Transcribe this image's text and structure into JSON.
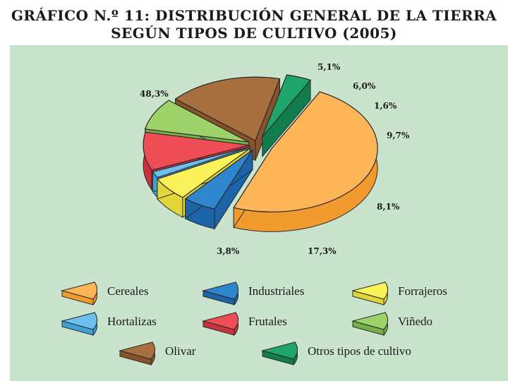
{
  "title_line1": "GRÁFICO N.º 11: DISTRIBUCIÓN GENERAL DE LA TIERRA",
  "title_line2": "SEGÚN TIPOS DE CULTIVO (2005)",
  "chart_data": {
    "type": "pie",
    "title": "GRÁFICO N.º 11: DISTRIBUCIÓN GENERAL DE LA TIERRA SEGÚN TIPOS DE CULTIVO (2005)",
    "slices": [
      {
        "label": "Cereales",
        "value": 48.3,
        "display": "48,3%",
        "color": "#fdb558",
        "dark": "#f19a2e"
      },
      {
        "label": "Industriales",
        "value": 5.1,
        "display": "5,1%",
        "color": "#2e86cf",
        "dark": "#1b64a8"
      },
      {
        "label": "Forrajeros",
        "value": 6.0,
        "display": "6,0%",
        "color": "#fbf25a",
        "dark": "#e3d63a"
      },
      {
        "label": "Hortalizas",
        "value": 1.6,
        "display": "1,6%",
        "color": "#6cc0ee",
        "dark": "#3fa1d6"
      },
      {
        "label": "Frutales",
        "value": 9.7,
        "display": "9,7%",
        "color": "#ef4e57",
        "dark": "#cc323b"
      },
      {
        "label": "Viñedo",
        "value": 8.1,
        "display": "8,1%",
        "color": "#9ed36a",
        "dark": "#76b148"
      },
      {
        "label": "Olivar",
        "value": 17.3,
        "display": "17,3%",
        "color": "#a9703f",
        "dark": "#86532a"
      },
      {
        "label": "Otros tipos de cultivo",
        "value": 3.8,
        "display": "3,8%",
        "color": "#1fa46a",
        "dark": "#117d4d"
      }
    ],
    "legend": "bottom"
  }
}
